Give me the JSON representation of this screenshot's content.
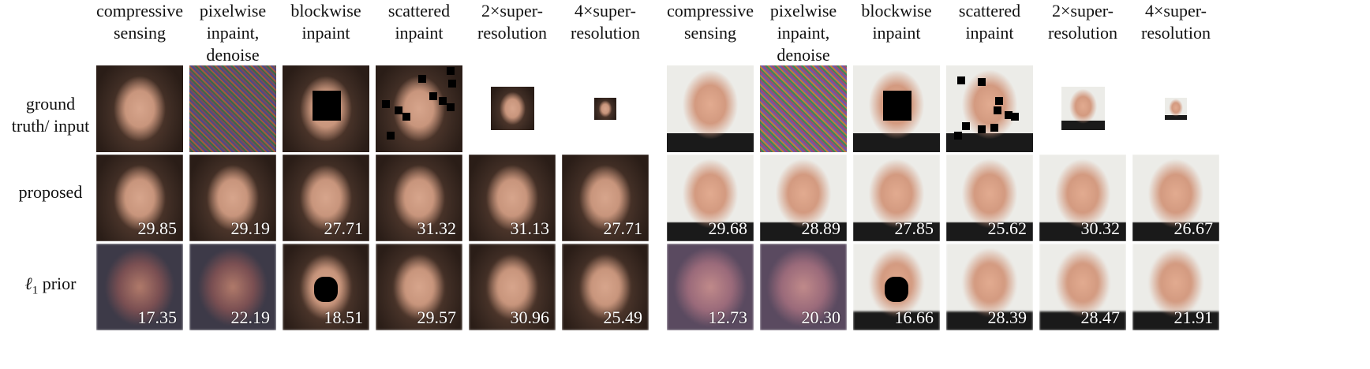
{
  "columns": [
    "compressive\nsensing",
    "pixelwise\ninpaint,\ndenoise",
    "blockwise\ninpaint",
    "scattered\ninpaint",
    "2×super-\nresolution",
    "4×super-\nresolution",
    "compressive\nsensing",
    "pixelwise\ninpaint,\ndenoise",
    "blockwise\ninpaint",
    "scattered\ninpaint",
    "2×super-\nresolution",
    "4×super-\nresolution"
  ],
  "rows": [
    {
      "label": "ground\ntruth/ input"
    },
    {
      "label": "proposed"
    },
    {
      "label_symbol": "ℓ",
      "label_sub": "1",
      "label_rest": " prior"
    }
  ],
  "scores": {
    "proposed": [
      "29.85",
      "29.19",
      "27.71",
      "31.32",
      "31.13",
      "27.71",
      "29.68",
      "28.89",
      "27.85",
      "25.62",
      "30.32",
      "26.67"
    ],
    "l1_prior": [
      "17.35",
      "22.19",
      "18.51",
      "29.57",
      "30.96",
      "25.49",
      "12.73",
      "20.30",
      "16.66",
      "28.39",
      "28.47",
      "21.91"
    ]
  },
  "colors": {
    "face_a_skin": "#c8957c",
    "face_a_hair": "#3b2a22",
    "face_b_skin": "#d39a80",
    "face_b_bg": "#ecece8",
    "mask": "#000000",
    "score_text": "#ffffff"
  }
}
